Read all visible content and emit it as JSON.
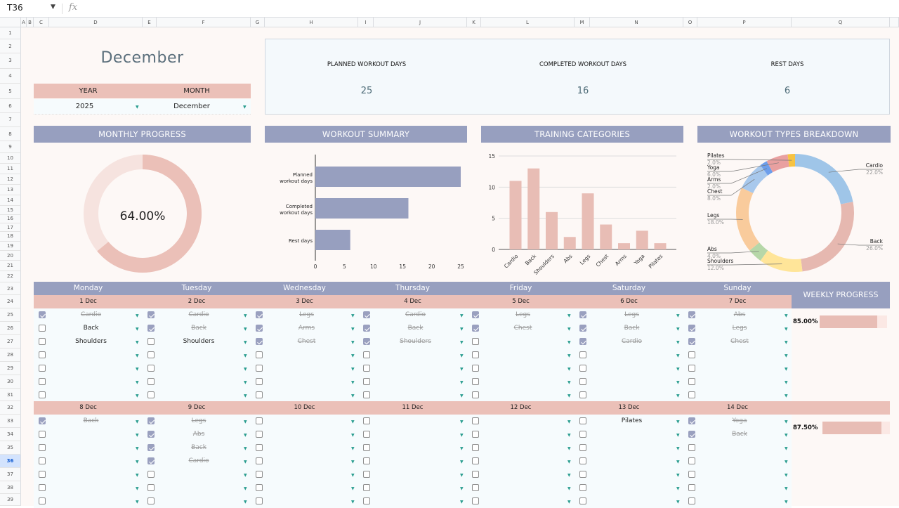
{
  "formula_bar": {
    "cell_ref": "T36",
    "fx_icon": "fx-icon",
    "value": ""
  },
  "column_headers": [
    "A",
    "B",
    "C",
    "D",
    "E",
    "F",
    "G",
    "H",
    "I",
    "J",
    "K",
    "L",
    "M",
    "N",
    "O",
    "P",
    "Q"
  ],
  "row_headers": [
    "1",
    "2",
    "3",
    "4",
    "5",
    "6",
    "7",
    "8",
    "9",
    "10",
    "11",
    "12",
    "13",
    "14",
    "15",
    "16",
    "17",
    "18",
    "19",
    "20",
    "21",
    "22",
    "23",
    "24",
    "25",
    "26",
    "27",
    "28",
    "29",
    "30",
    "31",
    "32",
    "33",
    "34",
    "35",
    "36",
    "37",
    "38",
    "39"
  ],
  "selected_row": "36",
  "header": {
    "title": "December",
    "year_label": "YEAR",
    "month_label": "MONTH",
    "year_value": "2025",
    "month_value": "December"
  },
  "kpis": [
    {
      "label": "PLANNED WORKOUT DAYS",
      "value": "25"
    },
    {
      "label": "COMPLETED WORKOUT DAYS",
      "value": "16"
    },
    {
      "label": "REST DAYS",
      "value": "6"
    }
  ],
  "sections": {
    "monthly_progress": "MONTHLY PROGRESS",
    "workout_summary": "WORKOUT SUMMARY",
    "training_categories": "TRAINING CATEGORIES",
    "workout_types": "WORKOUT TYPES BREAKDOWN",
    "weekly_progress": "WEEKLY PROGRESS"
  },
  "monthly_progress": {
    "value": 64,
    "label": "64.00%",
    "colors": {
      "fill": "#ebc0b8",
      "track": "#f6e3df"
    }
  },
  "chart_data": [
    {
      "type": "bar",
      "orientation": "horizontal",
      "categories": [
        "Planned workout days",
        "Completed workout days",
        "Rest days"
      ],
      "values": [
        25,
        16,
        6
      ],
      "xlim": [
        0,
        25
      ],
      "xticks": [
        0,
        5,
        10,
        15,
        20,
        25
      ],
      "grid": false,
      "color": "#979fbf"
    },
    {
      "type": "bar",
      "categories": [
        "Cardio",
        "Back",
        "Shoulders",
        "Abs",
        "Legs",
        "Chest",
        "Arms",
        "Yoga",
        "Pilates"
      ],
      "values": [
        11,
        13,
        6,
        2,
        9,
        4,
        1,
        3,
        1
      ],
      "ylim": [
        0,
        15
      ],
      "yticks": [
        0,
        5,
        10,
        15
      ],
      "grid": true,
      "color": "#e8bdb5"
    },
    {
      "type": "pie",
      "donut": true,
      "slices": [
        {
          "label": "Cardio",
          "value": 22.0,
          "text": "22.0%",
          "color": "#9fc5e8"
        },
        {
          "label": "Back",
          "value": 26.0,
          "text": "26.0%",
          "color": "#e6b8b0"
        },
        {
          "label": "Shoulders",
          "value": 12.0,
          "text": "12.0%",
          "color": "#ffe599"
        },
        {
          "label": "Abs",
          "value": 4.0,
          "text": "4.0%",
          "color": "#b6d7a8"
        },
        {
          "label": "Legs",
          "value": 18.0,
          "text": "18.0%",
          "color": "#f9cb9c"
        },
        {
          "label": "Chest",
          "value": 8.0,
          "text": "8.0%",
          "color": "#a8c8ec"
        },
        {
          "label": "Arms",
          "value": 2.0,
          "text": "2.0%",
          "color": "#6d9eeb"
        },
        {
          "label": "Yoga",
          "value": 6.0,
          "text": "6.0%",
          "color": "#e9a0a0"
        },
        {
          "label": "Pilates",
          "value": 2.0,
          "text": "2.0%",
          "color": "#f6c343"
        }
      ]
    }
  ],
  "calendar": {
    "day_names": [
      "Monday",
      "Tuesday",
      "Wednesday",
      "Thursday",
      "Friday",
      "Saturday",
      "Sunday"
    ],
    "weeks": [
      {
        "dates": [
          "1 Dec",
          "2 Dec",
          "3 Dec",
          "4 Dec",
          "5 Dec",
          "6 Dec",
          "7 Dec"
        ],
        "progress_label": "85.00%",
        "progress": 0.85,
        "days": [
          [
            {
              "checked": true,
              "task": "Cardio"
            },
            {
              "checked": false,
              "task": "Back"
            },
            {
              "checked": false,
              "task": "Shoulders"
            },
            {
              "checked": false,
              "task": ""
            },
            {
              "checked": false,
              "task": ""
            },
            {
              "checked": false,
              "task": ""
            },
            {
              "checked": false,
              "task": ""
            }
          ],
          [
            {
              "checked": true,
              "task": "Cardio"
            },
            {
              "checked": true,
              "task": "Back"
            },
            {
              "checked": false,
              "task": "Shoulders"
            },
            {
              "checked": false,
              "task": ""
            },
            {
              "checked": false,
              "task": ""
            },
            {
              "checked": false,
              "task": ""
            },
            {
              "checked": false,
              "task": ""
            }
          ],
          [
            {
              "checked": true,
              "task": "Legs"
            },
            {
              "checked": true,
              "task": "Arms"
            },
            {
              "checked": true,
              "task": "Chest"
            },
            {
              "checked": false,
              "task": ""
            },
            {
              "checked": false,
              "task": ""
            },
            {
              "checked": false,
              "task": ""
            },
            {
              "checked": false,
              "task": ""
            }
          ],
          [
            {
              "checked": true,
              "task": "Cardio"
            },
            {
              "checked": true,
              "task": "Back"
            },
            {
              "checked": true,
              "task": "Shoulders"
            },
            {
              "checked": false,
              "task": ""
            },
            {
              "checked": false,
              "task": ""
            },
            {
              "checked": false,
              "task": ""
            },
            {
              "checked": false,
              "task": ""
            }
          ],
          [
            {
              "checked": true,
              "task": "Legs"
            },
            {
              "checked": true,
              "task": "Chest"
            },
            {
              "checked": false,
              "task": ""
            },
            {
              "checked": false,
              "task": ""
            },
            {
              "checked": false,
              "task": ""
            },
            {
              "checked": false,
              "task": ""
            },
            {
              "checked": false,
              "task": ""
            }
          ],
          [
            {
              "checked": true,
              "task": "Legs"
            },
            {
              "checked": true,
              "task": "Back"
            },
            {
              "checked": true,
              "task": "Cardio"
            },
            {
              "checked": false,
              "task": ""
            },
            {
              "checked": false,
              "task": ""
            },
            {
              "checked": false,
              "task": ""
            },
            {
              "checked": false,
              "task": ""
            }
          ],
          [
            {
              "checked": true,
              "task": "Abs"
            },
            {
              "checked": true,
              "task": "Legs"
            },
            {
              "checked": true,
              "task": "Chest"
            },
            {
              "checked": false,
              "task": ""
            },
            {
              "checked": false,
              "task": ""
            },
            {
              "checked": false,
              "task": ""
            },
            {
              "checked": false,
              "task": ""
            }
          ]
        ]
      },
      {
        "dates": [
          "8 Dec",
          "9 Dec",
          "10 Dec",
          "11 Dec",
          "12 Dec",
          "13 Dec",
          "14 Dec"
        ],
        "progress_label": "87.50%",
        "progress": 0.875,
        "days": [
          [
            {
              "checked": true,
              "task": "Back"
            },
            {
              "checked": false,
              "task": ""
            },
            {
              "checked": false,
              "task": ""
            },
            {
              "checked": false,
              "task": ""
            },
            {
              "checked": false,
              "task": ""
            },
            {
              "checked": false,
              "task": ""
            },
            {
              "checked": false,
              "task": ""
            }
          ],
          [
            {
              "checked": true,
              "task": "Legs"
            },
            {
              "checked": true,
              "task": "Abs"
            },
            {
              "checked": true,
              "task": "Back"
            },
            {
              "checked": true,
              "task": "Cardio"
            },
            {
              "checked": false,
              "task": ""
            },
            {
              "checked": false,
              "task": ""
            },
            {
              "checked": false,
              "task": ""
            }
          ],
          [
            {
              "checked": false,
              "task": ""
            },
            {
              "checked": false,
              "task": ""
            },
            {
              "checked": false,
              "task": ""
            },
            {
              "checked": false,
              "task": ""
            },
            {
              "checked": false,
              "task": ""
            },
            {
              "checked": false,
              "task": ""
            },
            {
              "checked": false,
              "task": ""
            }
          ],
          [
            {
              "checked": false,
              "task": ""
            },
            {
              "checked": false,
              "task": ""
            },
            {
              "checked": false,
              "task": ""
            },
            {
              "checked": false,
              "task": ""
            },
            {
              "checked": false,
              "task": ""
            },
            {
              "checked": false,
              "task": ""
            },
            {
              "checked": false,
              "task": ""
            }
          ],
          [
            {
              "checked": false,
              "task": ""
            },
            {
              "checked": false,
              "task": ""
            },
            {
              "checked": false,
              "task": ""
            },
            {
              "checked": false,
              "task": ""
            },
            {
              "checked": false,
              "task": ""
            },
            {
              "checked": false,
              "task": ""
            },
            {
              "checked": false,
              "task": ""
            }
          ],
          [
            {
              "checked": false,
              "task": "Pilates"
            },
            {
              "checked": false,
              "task": ""
            },
            {
              "checked": false,
              "task": ""
            },
            {
              "checked": false,
              "task": ""
            },
            {
              "checked": false,
              "task": ""
            },
            {
              "checked": false,
              "task": ""
            },
            {
              "checked": false,
              "task": ""
            }
          ],
          [
            {
              "checked": true,
              "task": "Yoga"
            },
            {
              "checked": true,
              "task": "Back"
            },
            {
              "checked": false,
              "task": ""
            },
            {
              "checked": false,
              "task": ""
            },
            {
              "checked": false,
              "task": ""
            },
            {
              "checked": false,
              "task": ""
            },
            {
              "checked": false,
              "task": ""
            }
          ]
        ]
      }
    ]
  }
}
